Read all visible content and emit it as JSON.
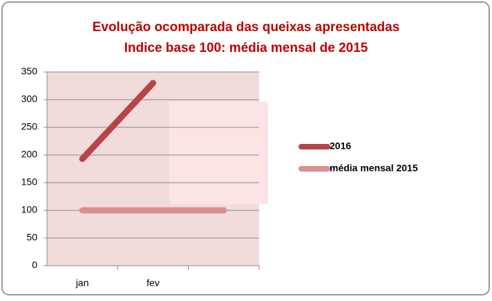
{
  "chart_data": {
    "type": "line",
    "title": "Evolução ocomparada das queixas apresentadas",
    "subtitle": "Indice base 100: média mensal de 2015",
    "categories": [
      "jan",
      "fev",
      null
    ],
    "series": [
      {
        "name": "2016",
        "color": "#b84444",
        "values": [
          193,
          330,
          null
        ]
      },
      {
        "name": "média mensal 2015",
        "color": "#d9908e",
        "values": [
          100,
          100,
          100
        ]
      }
    ],
    "ylim": [
      0,
      350
    ],
    "yticks": [
      0,
      50,
      100,
      150,
      200,
      250,
      300,
      350
    ],
    "grid": true,
    "legend": "right"
  }
}
